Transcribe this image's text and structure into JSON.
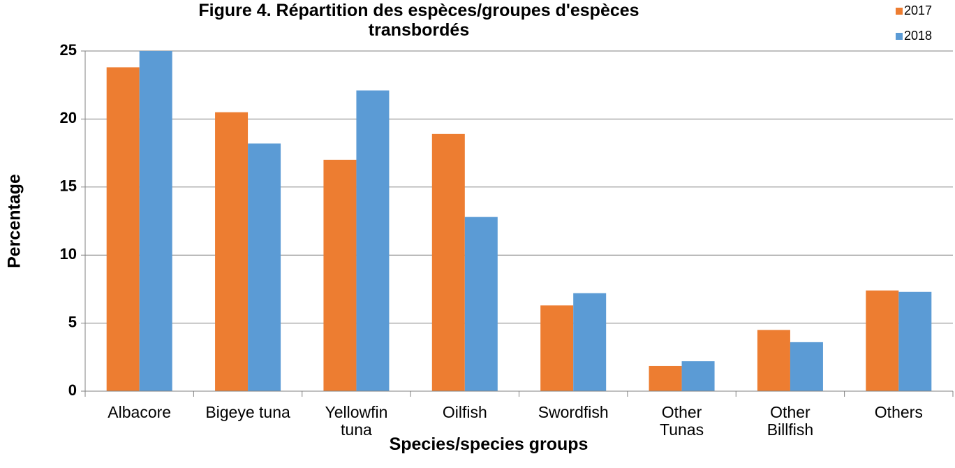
{
  "chart_data": {
    "type": "bar",
    "title": "Figure 4. Répartition des espèces/groupes d'espèces\ntransbordés",
    "x_label": "Species/species groups",
    "y_label": "Percentage",
    "categories": [
      "Albacore",
      "Bigeye tuna",
      "Yellowfin\ntuna",
      "Oilfish",
      "Swordfish",
      "Other\nTunas",
      "Other\nBillfish",
      "Others"
    ],
    "series": [
      {
        "name": "2017",
        "color": "#ED7D31",
        "values": [
          23.8,
          20.5,
          17.0,
          18.9,
          6.3,
          1.85,
          4.5,
          7.4
        ]
      },
      {
        "name": "2018",
        "color": "#5B9BD5",
        "values": [
          25.0,
          18.2,
          22.1,
          12.8,
          7.2,
          2.2,
          3.6,
          7.3
        ]
      }
    ],
    "ylim": [
      0,
      25
    ],
    "yticks": [
      0,
      5,
      10,
      15,
      20,
      25
    ],
    "grid": true,
    "legend": "top-right"
  }
}
